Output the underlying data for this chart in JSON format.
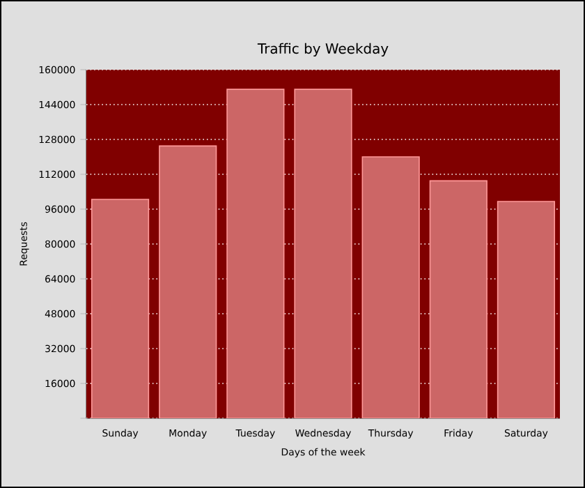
{
  "chart_data": {
    "type": "bar",
    "title": "Traffic by Weekday",
    "xlabel": "Days of the week",
    "ylabel": "Requests",
    "categories": [
      "Sunday",
      "Monday",
      "Tuesday",
      "Wednesday",
      "Thursday",
      "Friday",
      "Saturday"
    ],
    "values": [
      100500,
      125000,
      151000,
      151000,
      120000,
      109000,
      99500
    ],
    "color": "#cc6666",
    "ylim": [
      0,
      160000
    ],
    "yticks": [
      {
        "value": 0,
        "label": null
      },
      16000,
      32000,
      48000,
      64000,
      80000,
      96000,
      112000,
      128000,
      144000,
      160000
    ],
    "bands": [
      {
        "axis": "y",
        "from": 0,
        "to": 160000,
        "color": "#800000"
      }
    ],
    "grid": "y"
  }
}
